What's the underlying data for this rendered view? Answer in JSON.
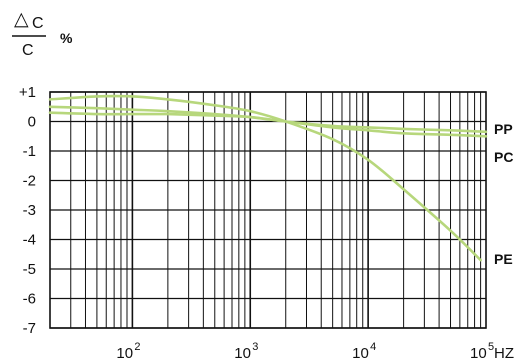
{
  "chart_data": {
    "type": "line",
    "ylabel": {
      "delta_symbol": "△",
      "numerator": "C",
      "denominator": "C",
      "unit": "%"
    },
    "xlabel": "HZ",
    "x_scale": "log",
    "x_range": [
      20,
      100000
    ],
    "ylim": [
      -7,
      1
    ],
    "y_ticks": [
      {
        "value": 1,
        "label": "+1"
      },
      {
        "value": 0,
        "label": "0"
      },
      {
        "value": -1,
        "label": "-1"
      },
      {
        "value": -2,
        "label": "-2"
      },
      {
        "value": -3,
        "label": "-3"
      },
      {
        "value": -4,
        "label": "-4"
      },
      {
        "value": -5,
        "label": "-5"
      },
      {
        "value": -6,
        "label": "-6"
      },
      {
        "value": -7,
        "label": "-7"
      }
    ],
    "x_ticks": [
      {
        "value": 100,
        "base": "10",
        "exp": "2"
      },
      {
        "value": 1000,
        "base": "10",
        "exp": "3"
      },
      {
        "value": 10000,
        "base": "10",
        "exp": "4"
      },
      {
        "value": 100000,
        "base": "10",
        "exp": "5"
      }
    ],
    "grid": true,
    "line_color": "#b7d77c",
    "series": [
      {
        "name": "PP",
        "x": [
          20,
          50,
          100,
          200,
          500,
          1000,
          2000,
          5000,
          10000,
          20000,
          50000,
          100000
        ],
        "y": [
          0.5,
          0.45,
          0.4,
          0.35,
          0.25,
          0.15,
          0.0,
          -0.15,
          -0.2,
          -0.25,
          -0.3,
          -0.35
        ]
      },
      {
        "name": "PC",
        "x": [
          20,
          50,
          100,
          200,
          500,
          1000,
          2000,
          5000,
          10000,
          20000,
          50000,
          100000
        ],
        "y": [
          0.3,
          0.25,
          0.25,
          0.25,
          0.2,
          0.15,
          0.0,
          -0.2,
          -0.3,
          -0.4,
          -0.45,
          -0.5
        ]
      },
      {
        "name": "PE",
        "x": [
          20,
          50,
          100,
          200,
          500,
          1000,
          2000,
          5000,
          10000,
          20000,
          50000,
          90000
        ],
        "y": [
          0.75,
          0.85,
          0.85,
          0.75,
          0.55,
          0.35,
          0.0,
          -0.6,
          -1.3,
          -2.3,
          -3.7,
          -4.7
        ]
      }
    ]
  }
}
